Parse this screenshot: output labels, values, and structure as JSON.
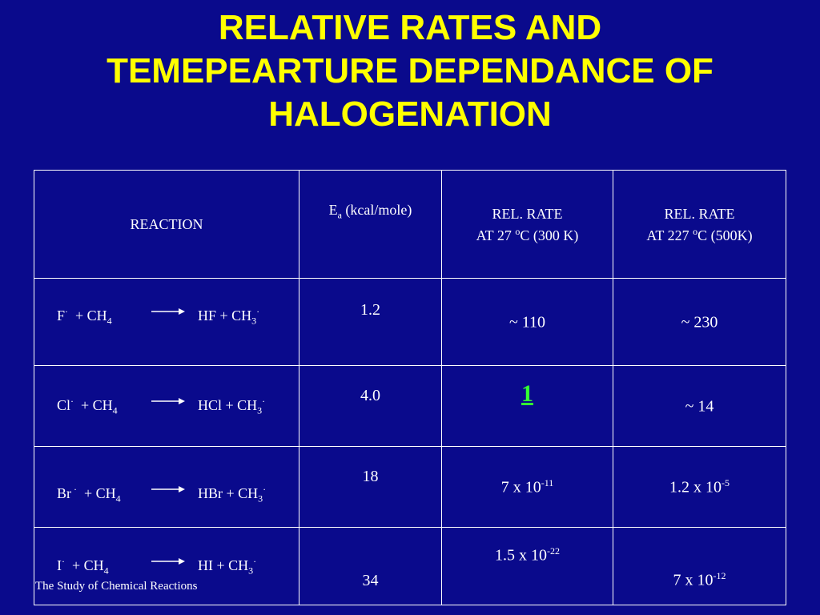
{
  "title": {
    "line1": "RELATIVE RATES AND",
    "line2": "TEMEPEARTURE DEPENDANCE OF",
    "line3": "HALOGENATION"
  },
  "table": {
    "headers": {
      "reaction": "REACTION",
      "ea_main": "E",
      "ea_sub": "a",
      "ea_unit": " (kcal/mole)",
      "rate300_line1": "REL. RATE",
      "rate300_line2_a": "AT 27 ",
      "rate300_line2_sup": "o",
      "rate300_line2_b": "C (300 K)",
      "rate500_line1": "REL. RATE",
      "rate500_line2_a": "AT 227 ",
      "rate500_line2_sup": "o",
      "rate500_line2_b": "C (500K)"
    },
    "rows": [
      {
        "reactant": "F",
        "reactant_dot": "·",
        "plus": "+  CH",
        "ch_sub": "4",
        "product": "HF  + CH",
        "prod_sub": "3",
        "prod_dot": "·",
        "ea": "1.2",
        "rate300": "~ 110",
        "rate300_sup": "",
        "rate500": "~ 230",
        "rate500_sup": ""
      },
      {
        "reactant": "Cl",
        "reactant_dot": "·",
        "plus": "+  CH",
        "ch_sub": "4",
        "product": "HCl  + CH",
        "prod_sub": "3",
        "prod_dot": "·",
        "ea": "4.0",
        "rate300": "1",
        "rate300_sup": "",
        "rate500": "~ 14",
        "rate500_sup": ""
      },
      {
        "reactant": "Br",
        "reactant_dot": " ·",
        "plus": "+  CH",
        "ch_sub": "4",
        "product": "HBr  + CH",
        "prod_sub": "3",
        "prod_dot": "·",
        "ea": "18",
        "rate300": "7 x 10",
        "rate300_sup": "-11",
        "rate500": "1.2 x 10",
        "rate500_sup": "-5"
      },
      {
        "reactant": "I",
        "reactant_dot": "·",
        "plus": "+  CH",
        "ch_sub": "4",
        "product": "HI  + CH",
        "prod_sub": "3",
        "prod_dot": "·",
        "ea": "34",
        "rate300": "1.5 x 10",
        "rate300_sup": "-22",
        "rate500": "7 x 10",
        "rate500_sup": "-12"
      }
    ]
  },
  "footer": "The Study of Chemical Reactions",
  "colors": {
    "background": "#0a0a8c",
    "title": "#ffff00",
    "highlight": "#33ff33"
  }
}
